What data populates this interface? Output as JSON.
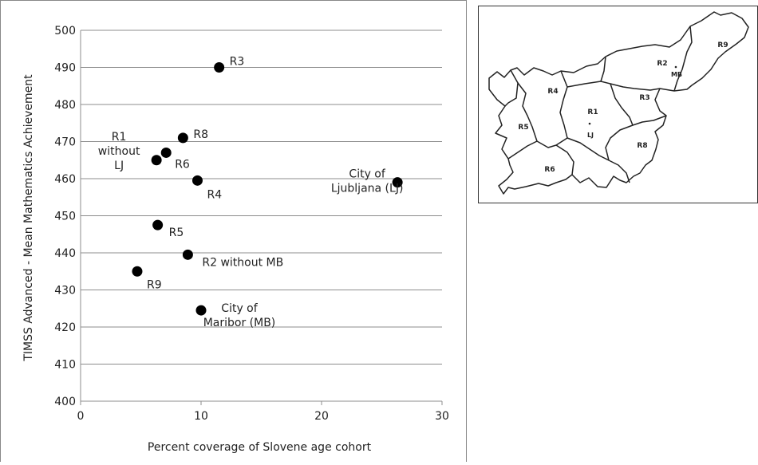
{
  "chart_data": {
    "type": "scatter",
    "xlabel": "Percent coverage of Slovene age cohort",
    "ylabel": "TIMSS Advanced - Mean Mathematics Achievement",
    "xlim": [
      0,
      30
    ],
    "ylim": [
      400,
      500
    ],
    "x_ticks": [
      0,
      10,
      20,
      30
    ],
    "y_ticks": [
      400,
      410,
      420,
      430,
      440,
      450,
      460,
      470,
      480,
      490,
      500
    ],
    "grid": "horizontal",
    "points": [
      {
        "label": [
          "R3"
        ],
        "x": 11.5,
        "y": 490
      },
      {
        "label": [
          "R8"
        ],
        "x": 8.5,
        "y": 471
      },
      {
        "label": [
          "R6"
        ],
        "x": 7.1,
        "y": 467
      },
      {
        "label": [
          "R1",
          "without",
          "LJ"
        ],
        "x": 6.3,
        "y": 465
      },
      {
        "label": [
          "R4"
        ],
        "x": 9.7,
        "y": 459.5
      },
      {
        "label": [
          "City of",
          "Ljubljana (LJ)"
        ],
        "x": 26.3,
        "y": 459
      },
      {
        "label": [
          "R5"
        ],
        "x": 6.4,
        "y": 447.5
      },
      {
        "label": [
          "R2 without MB"
        ],
        "x": 8.9,
        "y": 439.5
      },
      {
        "label": [
          "R9"
        ],
        "x": 4.7,
        "y": 435
      },
      {
        "label": [
          "City of",
          "Maribor (MB)"
        ],
        "x": 10.0,
        "y": 424.5
      }
    ]
  },
  "map": {
    "region_labels": [
      "R1",
      "R2",
      "R3",
      "R4",
      "R5",
      "R6",
      "R8",
      "R9"
    ],
    "city_labels": [
      "MB",
      "LJ"
    ]
  }
}
